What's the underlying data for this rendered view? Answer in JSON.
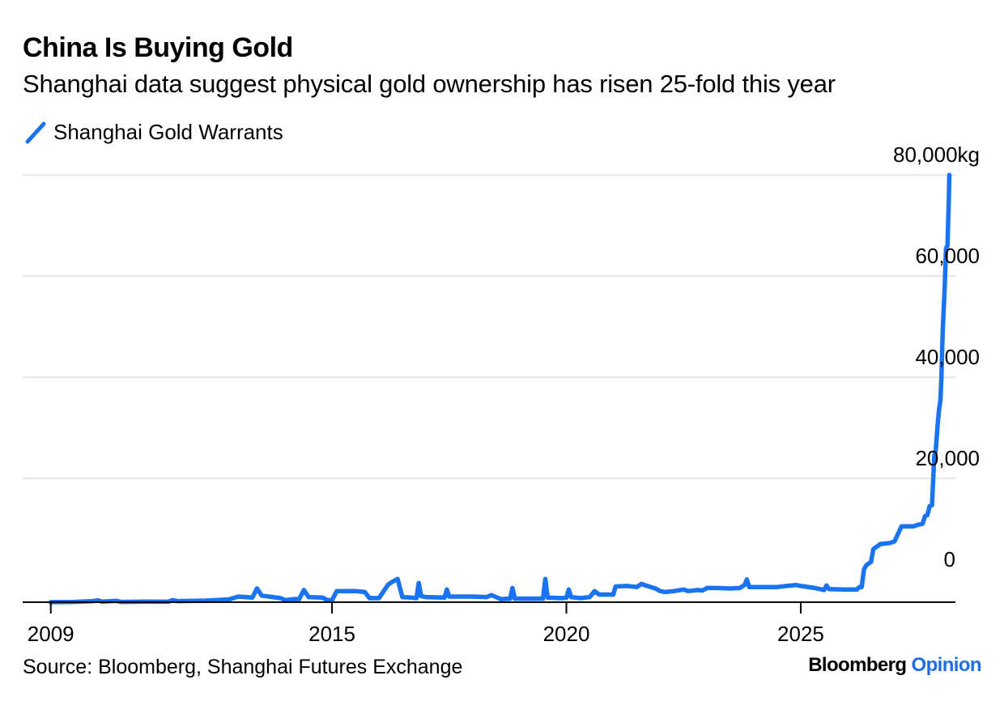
{
  "header": {
    "title": "China Is Buying Gold",
    "subtitle": "Shanghai data suggest physical gold ownership has risen 25-fold this year"
  },
  "footer": {
    "source": "Source: Bloomberg, Shanghai Futures Exchange",
    "brand_main": "Bloomberg",
    "brand_accent": "Opinion"
  },
  "colors": {
    "series": "#1a73f0",
    "grid": "#e6e6e6",
    "axis": "#000000",
    "brand_accent": "#1d6ee6"
  },
  "chart_data": {
    "type": "line",
    "title": "China Is Buying Gold",
    "subtitle": "Shanghai data suggest physical gold ownership has risen 25-fold this year",
    "xlabel": "",
    "ylabel": "",
    "xlim": [
      2008.4,
      2028.3
    ],
    "ylim": [
      -4500,
      85000
    ],
    "x_ticks": [
      2009,
      2015,
      2020,
      2025
    ],
    "x_tick_labels": [
      "2009",
      "2015",
      "2020",
      "2025"
    ],
    "y_ticks": [
      0,
      20000,
      40000,
      60000,
      80000
    ],
    "y_tick_labels": [
      "0",
      "20,000",
      "40,000",
      "60,000",
      "80,000kg"
    ],
    "grid": true,
    "legend": "top-left",
    "series": [
      {
        "name": "Shanghai Gold Warrants",
        "points": [
          [
            2009.0,
            0
          ],
          [
            2009.5,
            50
          ],
          [
            2009.9,
            200
          ],
          [
            2010.0,
            350
          ],
          [
            2010.1,
            100
          ],
          [
            2010.4,
            250
          ],
          [
            2010.5,
            50
          ],
          [
            2011.0,
            100
          ],
          [
            2011.5,
            80
          ],
          [
            2011.6,
            400
          ],
          [
            2011.7,
            200
          ],
          [
            2012.3,
            300
          ],
          [
            2012.8,
            550
          ],
          [
            2013.0,
            1100
          ],
          [
            2013.3,
            900
          ],
          [
            2013.4,
            2700
          ],
          [
            2013.5,
            1300
          ],
          [
            2013.9,
            800
          ],
          [
            2014.0,
            400
          ],
          [
            2014.2,
            600
          ],
          [
            2014.3,
            600
          ],
          [
            2014.4,
            2400
          ],
          [
            2014.5,
            1000
          ],
          [
            2014.8,
            900
          ],
          [
            2014.9,
            400
          ],
          [
            2015.0,
            400
          ],
          [
            2015.1,
            2200
          ],
          [
            2015.5,
            2200
          ],
          [
            2015.7,
            2000
          ],
          [
            2015.8,
            800
          ],
          [
            2016.0,
            800
          ],
          [
            2016.2,
            3500
          ],
          [
            2016.3,
            4100
          ],
          [
            2016.4,
            4600
          ],
          [
            2016.5,
            1000
          ],
          [
            2016.7,
            900
          ],
          [
            2016.8,
            800
          ],
          [
            2016.85,
            3800
          ],
          [
            2016.9,
            1200
          ],
          [
            2017.0,
            1000
          ],
          [
            2017.4,
            900
          ],
          [
            2017.45,
            2500
          ],
          [
            2017.5,
            1100
          ],
          [
            2018.0,
            1100
          ],
          [
            2018.3,
            1000
          ],
          [
            2018.4,
            1400
          ],
          [
            2018.6,
            600
          ],
          [
            2018.8,
            700
          ],
          [
            2018.85,
            2800
          ],
          [
            2018.9,
            700
          ],
          [
            2019.5,
            700
          ],
          [
            2019.55,
            4600
          ],
          [
            2019.6,
            900
          ],
          [
            2019.9,
            800
          ],
          [
            2020.0,
            900
          ],
          [
            2020.05,
            2500
          ],
          [
            2020.1,
            1000
          ],
          [
            2020.3,
            800
          ],
          [
            2020.5,
            1000
          ],
          [
            2020.6,
            2200
          ],
          [
            2020.7,
            1500
          ],
          [
            2020.9,
            1500
          ],
          [
            2021.0,
            1500
          ],
          [
            2021.05,
            3100
          ],
          [
            2021.3,
            3200
          ],
          [
            2021.5,
            3000
          ],
          [
            2021.6,
            3600
          ],
          [
            2021.8,
            3000
          ],
          [
            2021.9,
            2700
          ],
          [
            2022.0,
            2200
          ],
          [
            2022.1,
            2000
          ],
          [
            2022.3,
            2200
          ],
          [
            2022.5,
            2500
          ],
          [
            2022.6,
            2200
          ],
          [
            2022.8,
            2400
          ],
          [
            2022.9,
            2300
          ],
          [
            2023.0,
            2800
          ],
          [
            2023.2,
            2800
          ],
          [
            2023.5,
            2700
          ],
          [
            2023.7,
            2800
          ],
          [
            2023.8,
            3400
          ],
          [
            2023.85,
            4500
          ],
          [
            2023.9,
            3000
          ],
          [
            2024.0,
            3000
          ],
          [
            2024.5,
            3000
          ],
          [
            2024.7,
            3200
          ],
          [
            2024.9,
            3400
          ],
          [
            2025.0,
            3200
          ],
          [
            2025.3,
            2800
          ],
          [
            2025.5,
            2400
          ],
          [
            2025.55,
            3300
          ],
          [
            2025.6,
            2600
          ],
          [
            2025.9,
            2500
          ],
          [
            2026.2,
            2500
          ],
          [
            2026.25,
            3000
          ],
          [
            2026.3,
            3000
          ],
          [
            2026.35,
            6500
          ],
          [
            2026.4,
            7300
          ],
          [
            2026.5,
            8000
          ],
          [
            2026.55,
            10500
          ],
          [
            2026.7,
            11500
          ],
          [
            2026.9,
            11700
          ],
          [
            2027.0,
            12000
          ],
          [
            2027.1,
            14000
          ],
          [
            2027.15,
            15000
          ],
          [
            2027.4,
            15000
          ],
          [
            2027.5,
            15300
          ],
          [
            2027.6,
            15500
          ],
          [
            2027.65,
            17000
          ],
          [
            2027.7,
            17200
          ],
          [
            2027.75,
            19000
          ],
          [
            2027.8,
            19200
          ],
          [
            2027.85,
            29000
          ],
          [
            2027.88,
            30000
          ],
          [
            2027.92,
            35000
          ],
          [
            2027.95,
            38000
          ],
          [
            2027.98,
            40000
          ],
          [
            2028.0,
            44000
          ],
          [
            2028.03,
            54000
          ],
          [
            2028.07,
            62000
          ],
          [
            2028.1,
            70000
          ],
          [
            2028.13,
            70500
          ],
          [
            2028.16,
            80000
          ],
          [
            2028.17,
            84500
          ]
        ]
      }
    ]
  }
}
